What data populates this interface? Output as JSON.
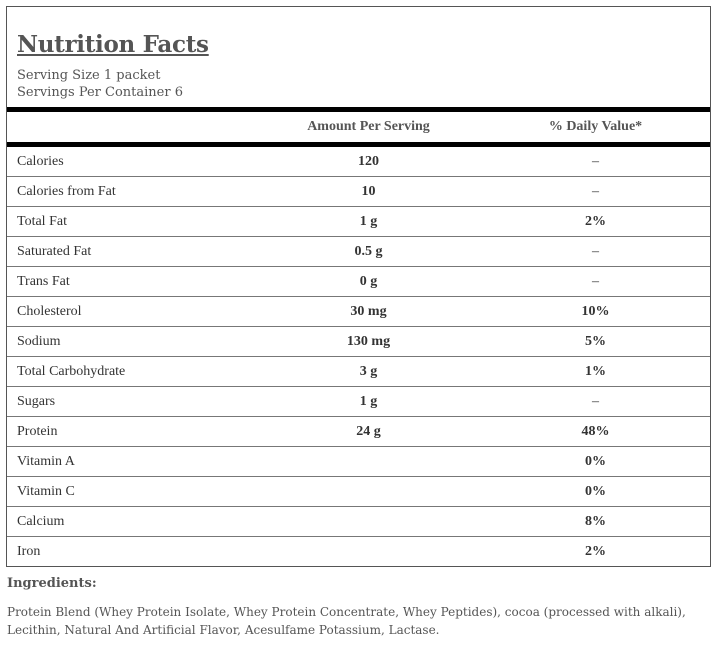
{
  "title": "Nutrition Facts",
  "serving_size": "Serving Size 1 packet",
  "servings_per_container": "Servings Per Container 6",
  "columns": {
    "amount": "Amount Per Serving",
    "daily_value": "% Daily Value*"
  },
  "rows": [
    {
      "name": "Calories",
      "amount": "120",
      "dv": "–"
    },
    {
      "name": "Calories from Fat",
      "amount": "10",
      "dv": "–"
    },
    {
      "name": "Total Fat",
      "amount": "1 g",
      "dv": "2%"
    },
    {
      "name": "Saturated Fat",
      "amount": "0.5 g",
      "dv": "–"
    },
    {
      "name": "Trans Fat",
      "amount": "0 g",
      "dv": "–"
    },
    {
      "name": "Cholesterol",
      "amount": "30 mg",
      "dv": "10%"
    },
    {
      "name": "Sodium",
      "amount": "130 mg",
      "dv": "5%"
    },
    {
      "name": "Total Carbohydrate",
      "amount": "3 g",
      "dv": "1%"
    },
    {
      "name": "Sugars",
      "amount": "1 g",
      "dv": "–"
    },
    {
      "name": "Protein",
      "amount": "24 g",
      "dv": "48%"
    },
    {
      "name": "Vitamin A",
      "amount": "",
      "dv": "0%"
    },
    {
      "name": "Vitamin C",
      "amount": "",
      "dv": "0%"
    },
    {
      "name": "Calcium",
      "amount": "",
      "dv": "8%"
    },
    {
      "name": "Iron",
      "amount": "",
      "dv": "2%"
    }
  ],
  "ingredients": {
    "heading": "Ingredients:",
    "text": "Protein Blend (Whey Protein Isolate, Whey Protein Concentrate, Whey Peptides), cocoa (processed with alkali), Lecithin, Natural And Artificial Flavor, Acesulfame Potassium, Lactase."
  }
}
